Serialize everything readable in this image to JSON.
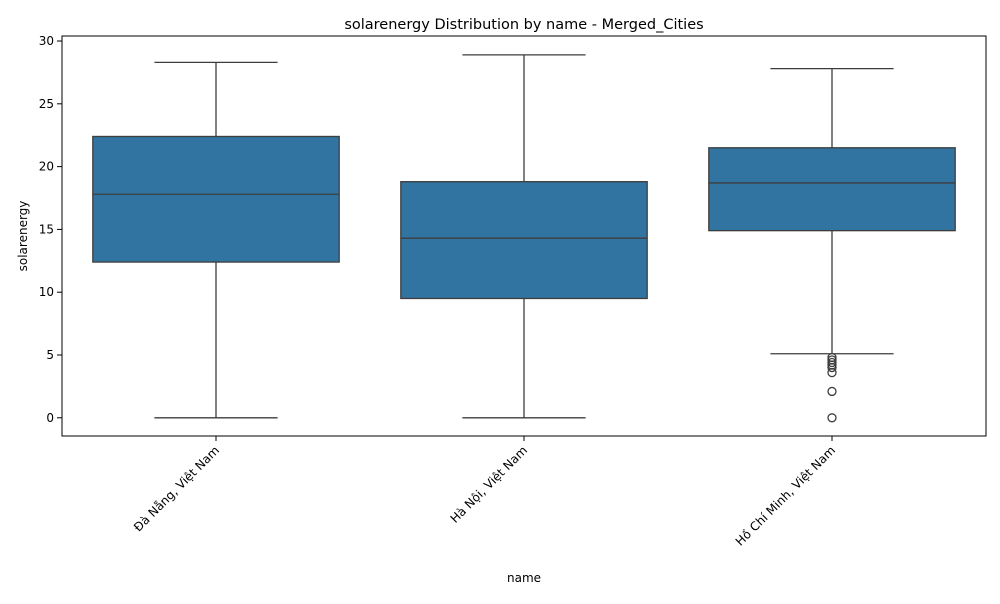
{
  "chart_data": {
    "type": "box",
    "title": "solarenergy Distribution by name - Merged_Cities",
    "xlabel": "name",
    "ylabel": "solarenergy",
    "ylim": [
      -1.45,
      30.4
    ],
    "yticks": [
      0,
      5,
      10,
      15,
      20,
      25,
      30
    ],
    "grid": false,
    "legend": "none",
    "colors": {
      "box_fill": "#3274a1",
      "line": "#3d3d3d"
    },
    "categories": [
      "Đà Nẵng, Việt Nam",
      "Hà Nội, Việt Nam",
      "Hồ Chí Minh, Việt Nam"
    ],
    "boxes": [
      {
        "category": "Đà Nẵng, Việt Nam",
        "whisker_low": 0.0,
        "q1": 12.4,
        "median": 17.8,
        "q3": 22.4,
        "whisker_high": 28.3,
        "outliers": []
      },
      {
        "category": "Hà Nội, Việt Nam",
        "whisker_low": 0.0,
        "q1": 9.5,
        "median": 14.3,
        "q3": 18.8,
        "whisker_high": 28.9,
        "outliers": []
      },
      {
        "category": "Hồ Chí Minh, Việt Nam",
        "whisker_low": 5.1,
        "q1": 14.9,
        "median": 18.7,
        "q3": 21.5,
        "whisker_high": 27.8,
        "outliers": [
          4.8,
          4.6,
          4.4,
          4.2,
          4.0,
          3.6,
          2.1,
          0.0
        ]
      }
    ]
  }
}
